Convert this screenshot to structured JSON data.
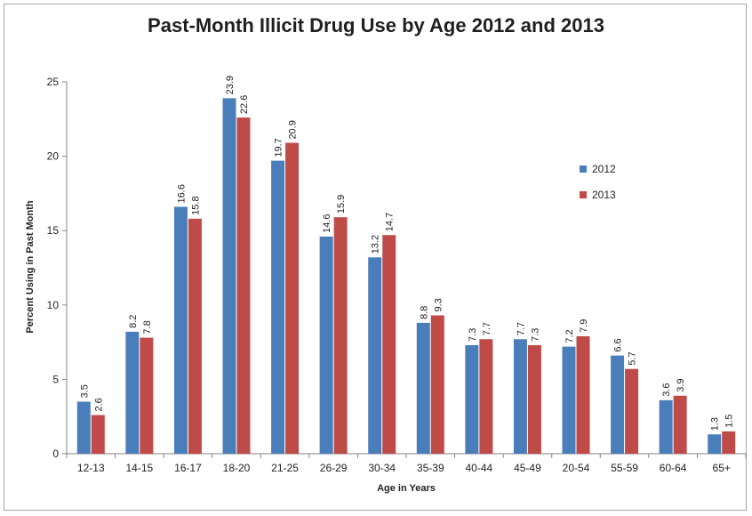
{
  "chart_data": {
    "type": "bar",
    "title": "Past-Month Illicit Drug Use by Age 2012 and 2013",
    "xlabel": "Age in Years",
    "ylabel": "Percent Using in Past Month",
    "ylim": [
      0,
      25
    ],
    "yticks": [
      0,
      5,
      10,
      15,
      20,
      25
    ],
    "grid": false,
    "legend_position": "right",
    "categories": [
      "12-13",
      "14-15",
      "16-17",
      "18-20",
      "21-25",
      "26-29",
      "30-34",
      "35-39",
      "40-44",
      "45-49",
      "20-54",
      "55-59",
      "60-64",
      "65+"
    ],
    "series": [
      {
        "name": "2012",
        "color": "#4a7ebb",
        "values": [
          3.5,
          8.2,
          16.6,
          23.9,
          19.7,
          14.6,
          13.2,
          8.8,
          7.3,
          7.7,
          7.2,
          6.6,
          3.6,
          1.3
        ],
        "labels": [
          "3.5",
          "8.2",
          "16.6",
          "23.9",
          "19.7",
          "14.6",
          "13.2",
          "8.8",
          "7.3",
          "7.7",
          "7.2",
          "6.6",
          "3.6",
          "1.3"
        ]
      },
      {
        "name": "2013",
        "color": "#be4b48",
        "values": [
          2.6,
          7.8,
          15.8,
          22.6,
          20.9,
          15.9,
          14.7,
          9.3,
          7.7,
          7.3,
          7.9,
          5.7,
          3.9,
          1.5
        ],
        "labels": [
          "2.6",
          "7.8",
          "15.8",
          "22.6",
          "20.9",
          "15.9",
          "14.7",
          "9.3",
          "7.7",
          "7.3",
          "7.9",
          "5.7",
          "3.9",
          "1.5"
        ]
      }
    ]
  }
}
